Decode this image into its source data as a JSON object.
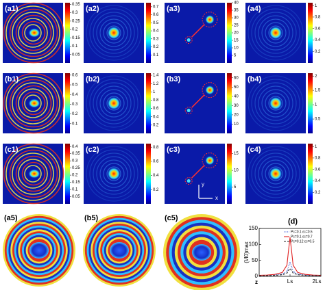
{
  "panels": [
    {
      "label": "(a1)",
      "colorbar": {
        "range": [
          0,
          0.36
        ],
        "ticks": [
          0.05,
          0.1,
          0.15,
          0.2,
          0.25,
          0.3,
          0.35
        ]
      }
    },
    {
      "label": "(a2)",
      "colorbar": {
        "range": [
          0,
          0.75
        ],
        "ticks": [
          0.1,
          0.2,
          0.3,
          0.4,
          0.5,
          0.6,
          0.7
        ]
      }
    },
    {
      "label": "(a3)",
      "colorbar": {
        "range": [
          0,
          40
        ],
        "ticks": [
          5,
          10,
          15,
          20,
          25,
          30,
          35,
          40
        ]
      }
    },
    {
      "label": "(a4)",
      "colorbar": {
        "range": [
          0,
          1.05
        ],
        "ticks": [
          0.2,
          0.4,
          0.6,
          0.8,
          1
        ]
      }
    },
    {
      "label": "(b1)",
      "colorbar": {
        "range": [
          0,
          0.62
        ],
        "ticks": [
          0.1,
          0.2,
          0.3,
          0.4,
          0.5,
          0.6
        ]
      }
    },
    {
      "label": "(b2)",
      "colorbar": {
        "range": [
          0,
          1.45
        ],
        "ticks": [
          0.2,
          0.4,
          0.6,
          0.8,
          1,
          1.2,
          1.4
        ]
      }
    },
    {
      "label": "(b3)",
      "colorbar": {
        "range": [
          0,
          65
        ],
        "ticks": [
          10,
          20,
          30,
          40,
          50,
          60
        ]
      }
    },
    {
      "label": "(b4)",
      "colorbar": {
        "range": [
          0,
          2.1
        ],
        "ticks": [
          0.5,
          1,
          1.5,
          2
        ]
      }
    },
    {
      "label": "(c1)",
      "colorbar": {
        "range": [
          0,
          0.42
        ],
        "ticks": [
          0.05,
          0.1,
          0.15,
          0.2,
          0.25,
          0.3,
          0.35,
          0.4
        ]
      }
    },
    {
      "label": "(c2)",
      "colorbar": {
        "range": [
          0,
          0.85
        ],
        "ticks": [
          0.2,
          0.4,
          0.6,
          0.8
        ]
      }
    },
    {
      "label": "(c3)",
      "colorbar": {
        "range": [
          0,
          18
        ],
        "ticks": [
          5,
          10,
          15
        ]
      },
      "arrows": {
        "x": "x",
        "y": "y"
      }
    },
    {
      "label": "(c4)",
      "colorbar": {
        "range": [
          0,
          1.05
        ],
        "ticks": [
          0.2,
          0.4,
          0.6,
          0.8,
          1
        ]
      }
    },
    {
      "label": "(a5)"
    },
    {
      "label": "(b5)"
    },
    {
      "label": "(c5)"
    }
  ],
  "chart_data": {
    "type": "line",
    "title": "(d)",
    "xlabel": "z",
    "ylabel": "(I/I0)max",
    "x": [
      0,
      0.25,
      0.5,
      0.75,
      0.9,
      0.95,
      1,
      1.05,
      1.1,
      1.25,
      1.5,
      1.75,
      2
    ],
    "series": [
      {
        "name": "Pc=0.1 εc=0.5",
        "color": "#1f3fd0",
        "style": "dotted",
        "values": [
          2,
          3,
          4,
          7,
          15,
          30,
          45,
          30,
          15,
          7,
          4,
          3,
          2
        ]
      },
      {
        "name": "Pc=0.1 εc=0.7",
        "color": "#e02020",
        "style": "solid",
        "values": [
          3,
          4,
          6,
          12,
          35,
          80,
          122,
          80,
          35,
          12,
          6,
          4,
          3
        ]
      },
      {
        "name": "Pc=0.12 εc=0.5",
        "color": "#222222",
        "style": "dashed",
        "values": [
          2,
          2,
          3,
          5,
          10,
          18,
          25,
          18,
          10,
          5,
          3,
          2,
          2
        ]
      }
    ],
    "xlim": [
      0,
      2
    ],
    "xticks": [
      {
        "value": 1,
        "label": "Ls"
      },
      {
        "value": 2,
        "label": "2Ls"
      }
    ],
    "ylim": [
      0,
      150
    ],
    "yticks": [
      0,
      50,
      100,
      150
    ],
    "legend": "upper right"
  }
}
